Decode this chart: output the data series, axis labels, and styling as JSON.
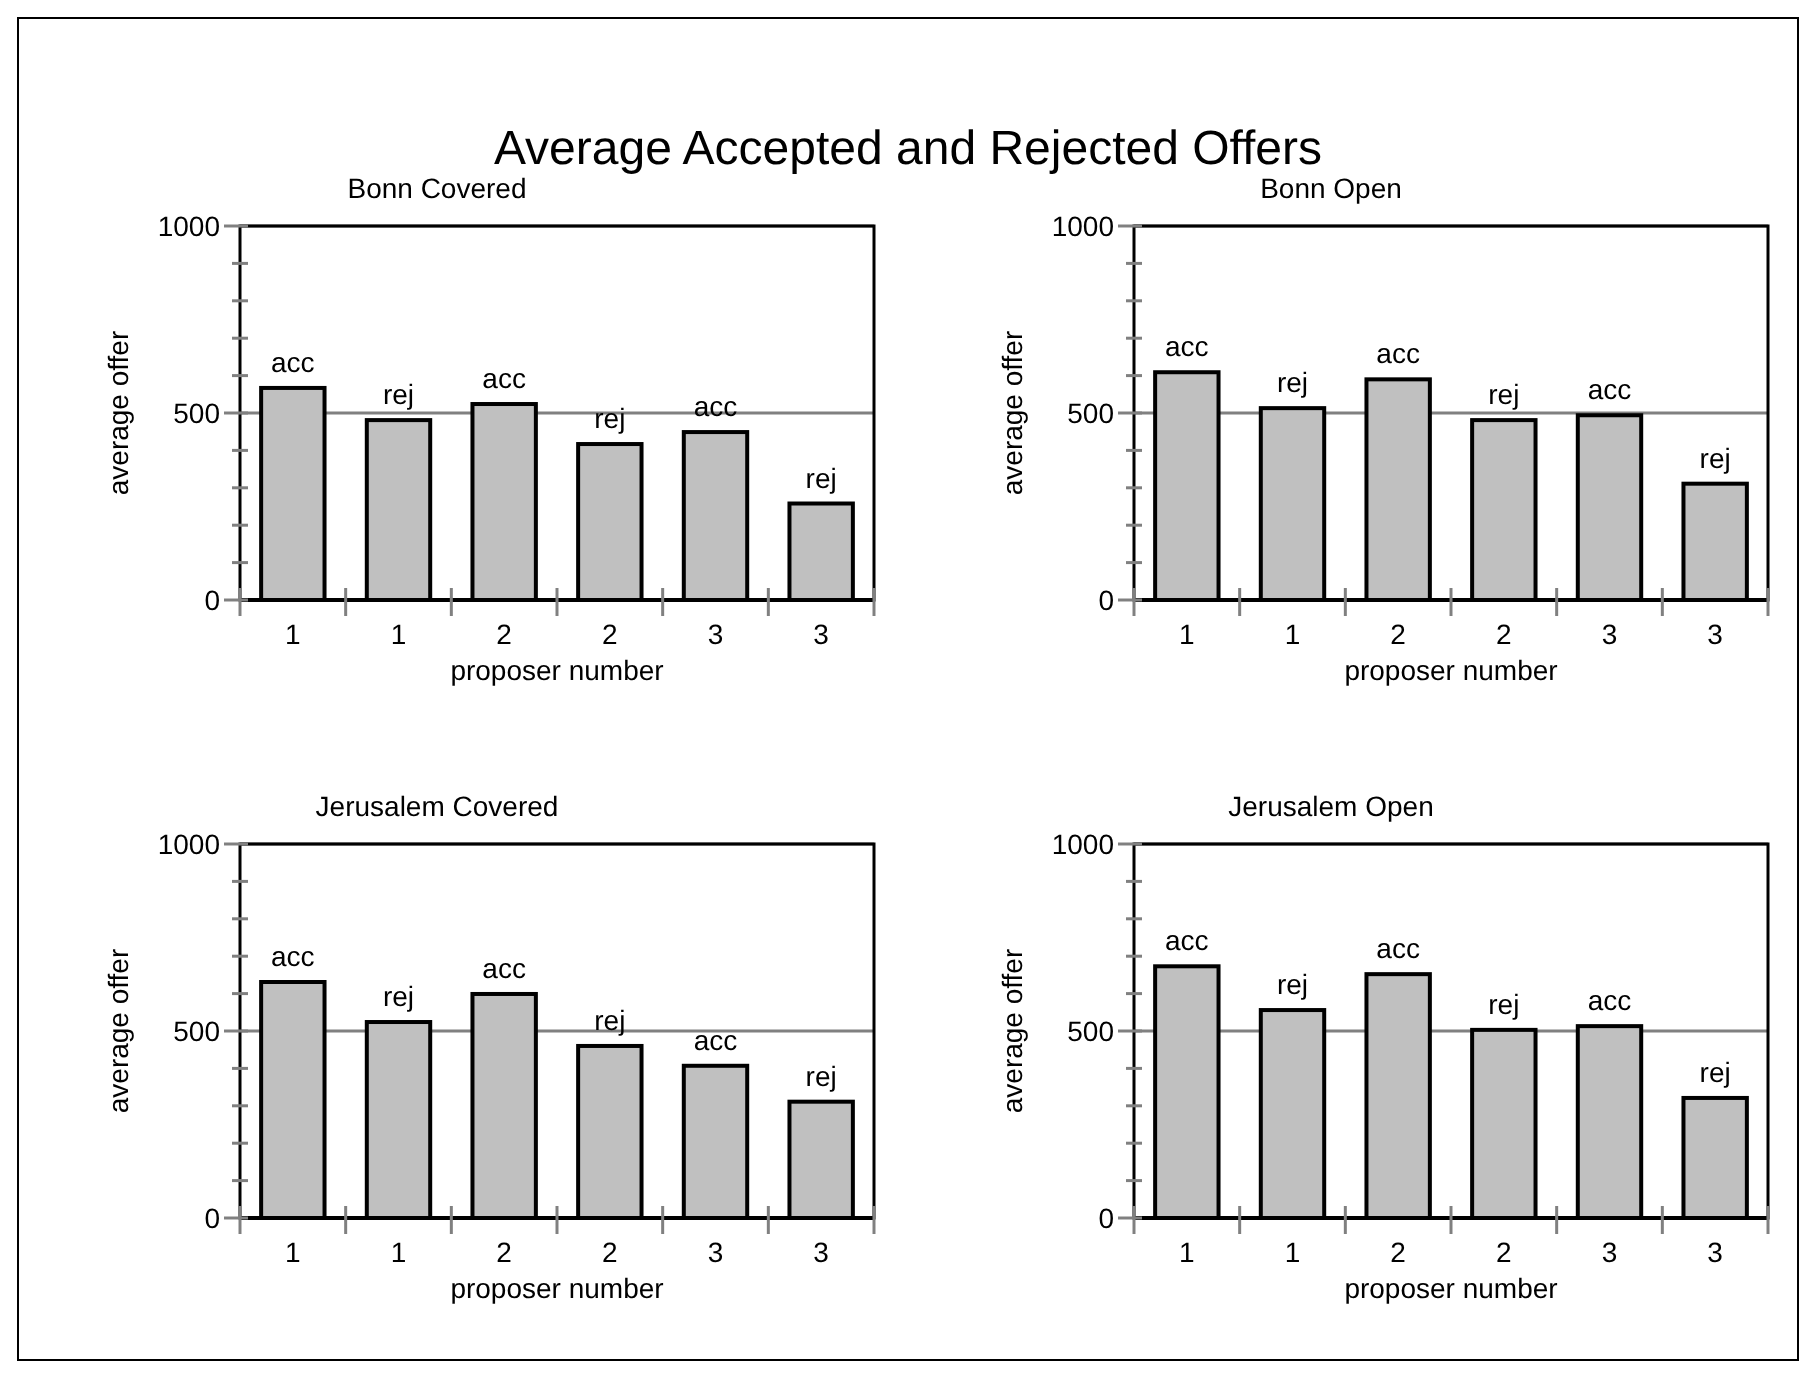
{
  "chart_data": [
    {
      "type": "other",
      "title": "Average Accepted and Rejected Offers"
    },
    {
      "type": "bar",
      "title": "Bonn Covered",
      "xlabel": "proposer number",
      "ylabel": "average offer",
      "categories": [
        "1",
        "1",
        "2",
        "2",
        "3",
        "3"
      ],
      "values": [
        567,
        481,
        524,
        417,
        449,
        258
      ],
      "value_labels": [
        "acc",
        "rej",
        "acc",
        "rej",
        "acc",
        "rej"
      ],
      "color": "#c0c0c0",
      "ylim": [
        0,
        1000
      ],
      "yticks": [
        0,
        {
          "value": 100,
          "label": null
        },
        {
          "value": 200,
          "label": null
        },
        {
          "value": 300,
          "label": null
        },
        {
          "value": 400,
          "label": null
        },
        500,
        {
          "value": 600,
          "label": null
        },
        {
          "value": 700,
          "label": null
        },
        {
          "value": 800,
          "label": null
        },
        {
          "value": 900,
          "label": null
        },
        1000
      ],
      "grid": "y"
    },
    {
      "type": "bar",
      "title": "Bonn Open",
      "xlabel": "proposer number",
      "ylabel": "average offer",
      "categories": [
        "1",
        "1",
        "2",
        "2",
        "3",
        "3"
      ],
      "values": [
        609,
        513,
        590,
        481,
        494,
        311
      ],
      "value_labels": [
        "acc",
        "rej",
        "acc",
        "rej",
        "acc",
        "rej"
      ],
      "color": "#c0c0c0",
      "ylim": [
        0,
        1000
      ],
      "yticks": [
        0,
        {
          "value": 100,
          "label": null
        },
        {
          "value": 200,
          "label": null
        },
        {
          "value": 300,
          "label": null
        },
        {
          "value": 400,
          "label": null
        },
        500,
        {
          "value": 600,
          "label": null
        },
        {
          "value": 700,
          "label": null
        },
        {
          "value": 800,
          "label": null
        },
        {
          "value": 900,
          "label": null
        },
        1000
      ],
      "grid": "y"
    },
    {
      "type": "bar",
      "title": "Jerusalem Covered",
      "xlabel": "proposer number",
      "ylabel": "average offer",
      "categories": [
        "1",
        "1",
        "2",
        "2",
        "3",
        "3"
      ],
      "values": [
        631,
        524,
        599,
        460,
        407,
        311
      ],
      "value_labels": [
        "acc",
        "rej",
        "acc",
        "rej",
        "acc",
        "rej"
      ],
      "color": "#c0c0c0",
      "ylim": [
        0,
        1000
      ],
      "yticks": [
        0,
        {
          "value": 100,
          "label": null
        },
        {
          "value": 200,
          "label": null
        },
        {
          "value": 300,
          "label": null
        },
        {
          "value": 400,
          "label": null
        },
        500,
        {
          "value": 600,
          "label": null
        },
        {
          "value": 700,
          "label": null
        },
        {
          "value": 800,
          "label": null
        },
        {
          "value": 900,
          "label": null
        },
        1000
      ],
      "grid": "y"
    },
    {
      "type": "bar",
      "title": "Jerusalem Open",
      "xlabel": "proposer number",
      "ylabel": "average offer",
      "categories": [
        "1",
        "1",
        "2",
        "2",
        "3",
        "3"
      ],
      "values": [
        673,
        556,
        652,
        503,
        513,
        321
      ],
      "value_labels": [
        "acc",
        "rej",
        "acc",
        "rej",
        "acc",
        "rej"
      ],
      "color": "#c0c0c0",
      "ylim": [
        0,
        1000
      ],
      "yticks": [
        0,
        {
          "value": 100,
          "label": null
        },
        {
          "value": 200,
          "label": null
        },
        {
          "value": 300,
          "label": null
        },
        {
          "value": 400,
          "label": null
        },
        500,
        {
          "value": 600,
          "label": null
        },
        {
          "value": 700,
          "label": null
        },
        {
          "value": 800,
          "label": null
        },
        {
          "value": 900,
          "label": null
        },
        1000
      ],
      "grid": "y"
    }
  ]
}
